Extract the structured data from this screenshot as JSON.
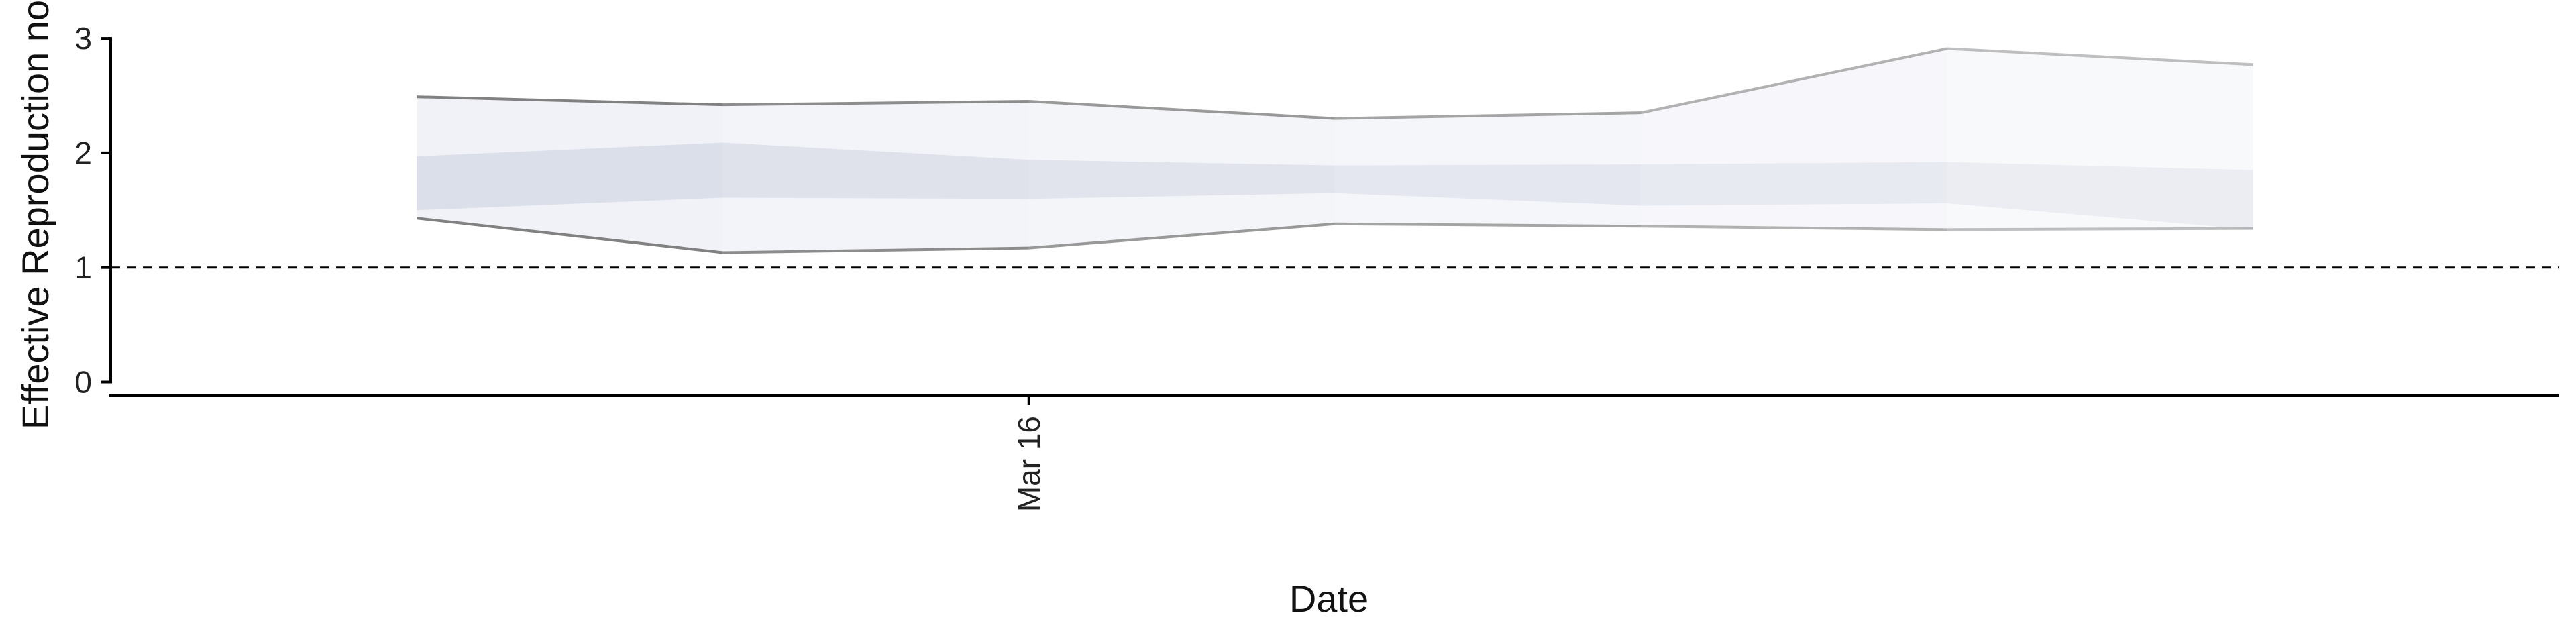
{
  "chart_data": {
    "type": "area",
    "xlabel": "Date",
    "ylabel": "Effective Reproduction no",
    "ylim": [
      -0.12,
      3.1
    ],
    "x_tick_labels": [
      "Mar 16"
    ],
    "x_tick_dates": [
      "2020-03-16"
    ],
    "y_ticks": [
      0,
      1,
      2,
      3
    ],
    "x_labels_rotated": true,
    "grid": false,
    "legend": "none",
    "reference_line": {
      "y": 1,
      "style": "dashed"
    },
    "dates": [
      "2020-03-14",
      "2020-03-15",
      "2020-03-16",
      "2020-03-17",
      "2020-03-18",
      "2020-03-19",
      "2020-03-20"
    ],
    "series": [
      {
        "values_low90": [
          1.43,
          1.13,
          1.17,
          1.38,
          1.36,
          1.33,
          1.34
        ],
        "values_high90": [
          2.49,
          2.42,
          2.45,
          2.3,
          2.35,
          2.91,
          2.77
        ],
        "values_low50": [
          1.5,
          1.61,
          1.6,
          1.65,
          1.54,
          1.56,
          1.33
        ],
        "values_high50": [
          1.97,
          2.09,
          1.94,
          1.89,
          1.9,
          1.92,
          1.85
        ]
      }
    ],
    "x_range": [
      "2020-03-13",
      "2020-03-21"
    ]
  },
  "colors": {
    "band_outer": "#e6e8f2",
    "band_inner": "#cdd2e0",
    "bound_line": "#7a7a7a",
    "axis": "#000000"
  }
}
